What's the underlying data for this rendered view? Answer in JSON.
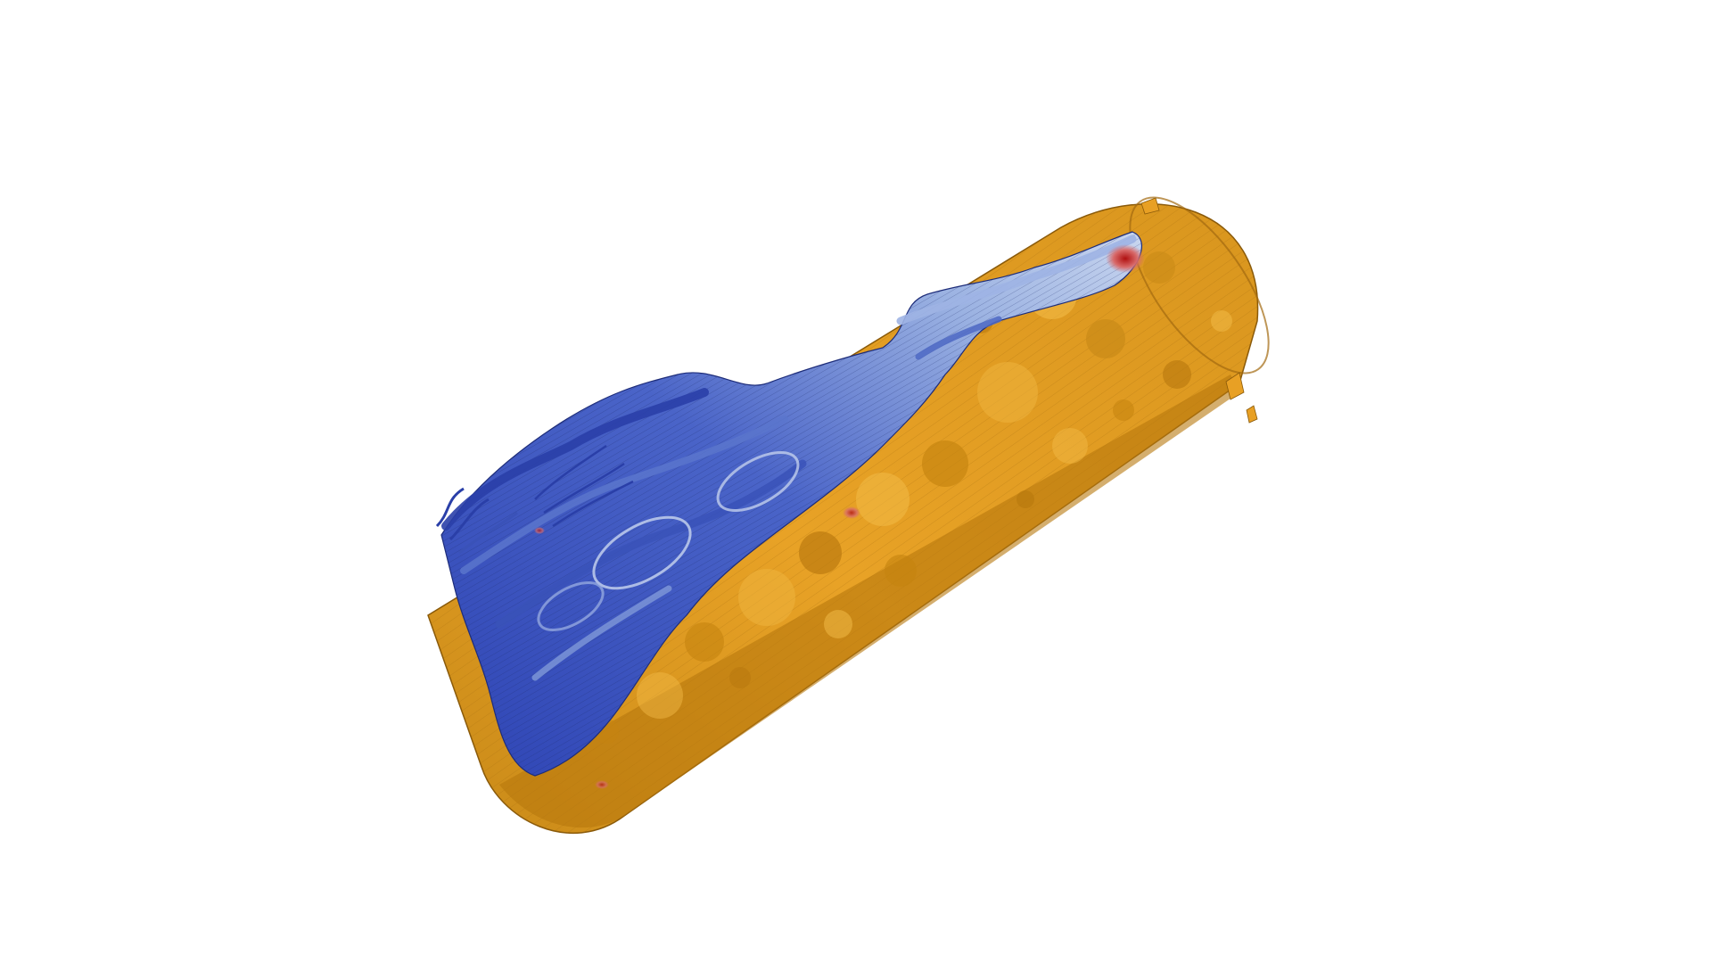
{
  "scene": {
    "background_color": "#ffffff",
    "core_color": "#e8a024",
    "core_shadow_color": "#b8780e",
    "core_highlight_color": "#f4bd4a",
    "flow_color_low": "#3448b8",
    "flow_color_mid": "#8ea6dc",
    "flow_color_high": "#b01818",
    "streamline_color": "#1a2a6a"
  }
}
